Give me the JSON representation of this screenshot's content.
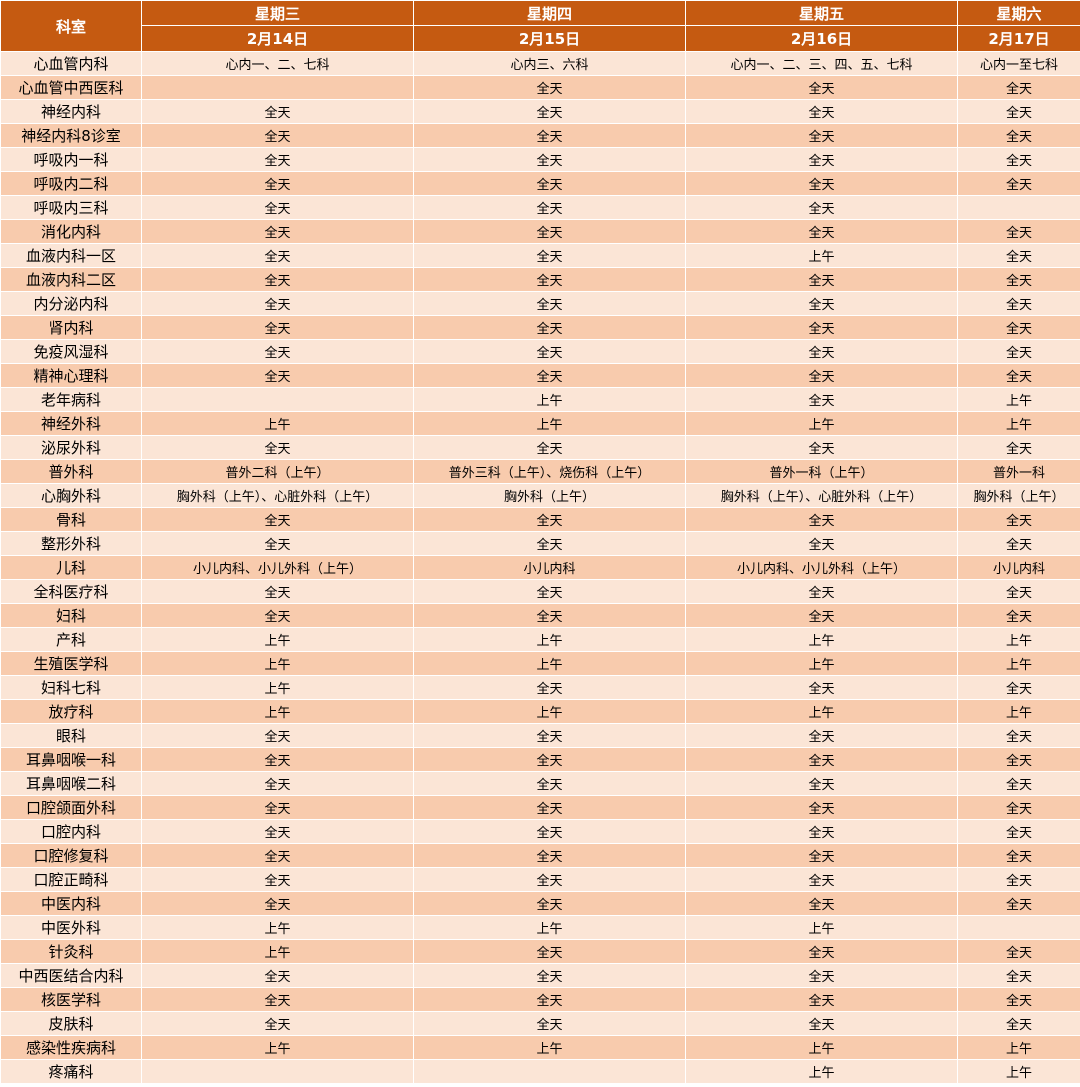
{
  "header": {
    "dept_label": "科室",
    "days": [
      {
        "weekday": "星期三",
        "date": "2月14日"
      },
      {
        "weekday": "星期四",
        "date": "2月15日"
      },
      {
        "weekday": "星期五",
        "date": "2月16日"
      },
      {
        "weekday": "星期六",
        "date": "2月17日"
      }
    ]
  },
  "rows": [
    {
      "dept": "心血管内科",
      "cells": [
        "心内一、二、七科",
        "心内三、六科",
        "心内一、二、三、四、五、七科",
        "心内一至七科"
      ]
    },
    {
      "dept": "心血管中西医科",
      "cells": [
        "",
        "全天",
        "全天",
        "全天"
      ]
    },
    {
      "dept": "神经内科",
      "cells": [
        "全天",
        "全天",
        "全天",
        "全天"
      ]
    },
    {
      "dept": "神经内科8诊室",
      "cells": [
        "全天",
        "全天",
        "全天",
        "全天"
      ]
    },
    {
      "dept": "呼吸内一科",
      "cells": [
        "全天",
        "全天",
        "全天",
        "全天"
      ]
    },
    {
      "dept": "呼吸内二科",
      "cells": [
        "全天",
        "全天",
        "全天",
        "全天"
      ]
    },
    {
      "dept": "呼吸内三科",
      "cells": [
        "全天",
        "全天",
        "全天",
        ""
      ]
    },
    {
      "dept": "消化内科",
      "cells": [
        "全天",
        "全天",
        "全天",
        "全天"
      ]
    },
    {
      "dept": "血液内科一区",
      "cells": [
        "全天",
        "全天",
        "上午",
        "全天"
      ]
    },
    {
      "dept": "血液内科二区",
      "cells": [
        "全天",
        "全天",
        "全天",
        "全天"
      ]
    },
    {
      "dept": "内分泌内科",
      "cells": [
        "全天",
        "全天",
        "全天",
        "全天"
      ]
    },
    {
      "dept": "肾内科",
      "cells": [
        "全天",
        "全天",
        "全天",
        "全天"
      ]
    },
    {
      "dept": "免疫风湿科",
      "cells": [
        "全天",
        "全天",
        "全天",
        "全天"
      ]
    },
    {
      "dept": "精神心理科",
      "cells": [
        "全天",
        "全天",
        "全天",
        "全天"
      ]
    },
    {
      "dept": "老年病科",
      "cells": [
        "",
        "上午",
        "全天",
        "上午"
      ]
    },
    {
      "dept": "神经外科",
      "cells": [
        "上午",
        "上午",
        "上午",
        "上午"
      ]
    },
    {
      "dept": "泌尿外科",
      "cells": [
        "全天",
        "全天",
        "全天",
        "全天"
      ]
    },
    {
      "dept": "普外科",
      "cells": [
        "普外二科（上午）",
        "普外三科（上午）、烧伤科（上午）",
        "普外一科（上午）",
        "普外一科"
      ]
    },
    {
      "dept": "心胸外科",
      "cells": [
        "胸外科（上午）、心脏外科（上午）",
        "胸外科（上午）",
        "胸外科（上午）、心脏外科（上午）",
        "胸外科（上午）"
      ]
    },
    {
      "dept": "骨科",
      "cells": [
        "全天",
        "全天",
        "全天",
        "全天"
      ]
    },
    {
      "dept": "整形外科",
      "cells": [
        "全天",
        "全天",
        "全天",
        "全天"
      ]
    },
    {
      "dept": "儿科",
      "cells": [
        "小儿内科、小儿外科（上午）",
        "小儿内科",
        "小儿内科、小儿外科（上午）",
        "小儿内科"
      ]
    },
    {
      "dept": "全科医疗科",
      "cells": [
        "全天",
        "全天",
        "全天",
        "全天"
      ]
    },
    {
      "dept": "妇科",
      "cells": [
        "全天",
        "全天",
        "全天",
        "全天"
      ]
    },
    {
      "dept": "产科",
      "cells": [
        "上午",
        "上午",
        "上午",
        "上午"
      ]
    },
    {
      "dept": "生殖医学科",
      "cells": [
        "上午",
        "上午",
        "上午",
        "上午"
      ]
    },
    {
      "dept": "妇科七科",
      "cells": [
        "上午",
        "全天",
        "全天",
        "全天"
      ]
    },
    {
      "dept": "放疗科",
      "cells": [
        "上午",
        "上午",
        "上午",
        "上午"
      ]
    },
    {
      "dept": "眼科",
      "cells": [
        "全天",
        "全天",
        "全天",
        "全天"
      ]
    },
    {
      "dept": "耳鼻咽喉一科",
      "cells": [
        "全天",
        "全天",
        "全天",
        "全天"
      ]
    },
    {
      "dept": "耳鼻咽喉二科",
      "cells": [
        "全天",
        "全天",
        "全天",
        "全天"
      ]
    },
    {
      "dept": "口腔颌面外科",
      "cells": [
        "全天",
        "全天",
        "全天",
        "全天"
      ]
    },
    {
      "dept": "口腔内科",
      "cells": [
        "全天",
        "全天",
        "全天",
        "全天"
      ]
    },
    {
      "dept": "口腔修复科",
      "cells": [
        "全天",
        "全天",
        "全天",
        "全天"
      ]
    },
    {
      "dept": "口腔正畸科",
      "cells": [
        "全天",
        "全天",
        "全天",
        "全天"
      ]
    },
    {
      "dept": "中医内科",
      "cells": [
        "全天",
        "全天",
        "全天",
        "全天"
      ]
    },
    {
      "dept": "中医外科",
      "cells": [
        "上午",
        "上午",
        "上午",
        ""
      ]
    },
    {
      "dept": "针灸科",
      "cells": [
        "上午",
        "全天",
        "全天",
        "全天"
      ]
    },
    {
      "dept": "中西医结合内科",
      "cells": [
        "全天",
        "全天",
        "全天",
        "全天"
      ]
    },
    {
      "dept": "核医学科",
      "cells": [
        "全天",
        "全天",
        "全天",
        "全天"
      ]
    },
    {
      "dept": "皮肤科",
      "cells": [
        "全天",
        "全天",
        "全天",
        "全天"
      ]
    },
    {
      "dept": "感染性疾病科",
      "cells": [
        "上午",
        "上午",
        "上午",
        "上午"
      ]
    },
    {
      "dept": "疼痛科",
      "cells": [
        "",
        "",
        "上午",
        "上午"
      ]
    }
  ]
}
